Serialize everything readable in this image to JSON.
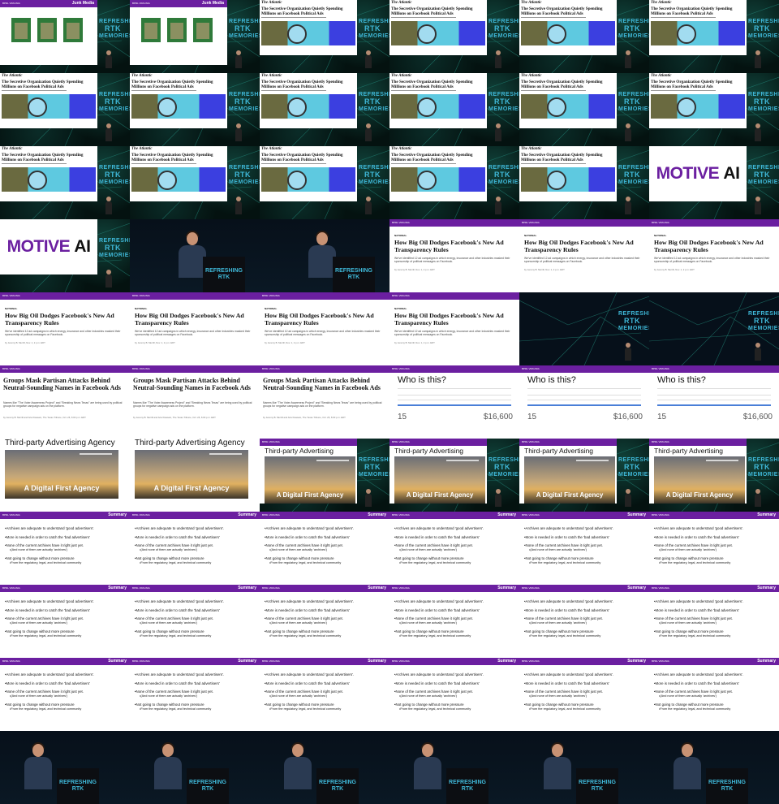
{
  "brand_tag": "BPRL VIRGINIA",
  "rows": [
    [
      "junk",
      "junk",
      "atlantic",
      "atlantic",
      "atlantic",
      "atlantic"
    ],
    [
      "atlantic",
      "atlantic",
      "atlantic",
      "atlantic",
      "atlantic",
      "atlantic"
    ],
    [
      "atlantic",
      "atlantic",
      "atlantic",
      "atlantic",
      "atlantic",
      "motive"
    ],
    [
      "motive",
      "speaker",
      "speaker",
      "pp",
      "pp",
      "pp"
    ],
    [
      "pp",
      "pp",
      "pp",
      "pp",
      "stage",
      "stage"
    ],
    [
      "groups",
      "groups",
      "groups",
      "who",
      "who",
      "who"
    ],
    [
      "tp_full",
      "tp_full",
      "tp_small",
      "tp_small",
      "tp_small",
      "tp_small"
    ],
    [
      "summary",
      "summary",
      "summary",
      "summary",
      "summary",
      "summary"
    ],
    [
      "summary",
      "summary",
      "summary",
      "summary",
      "summary",
      "summary"
    ],
    [
      "summary",
      "summary",
      "summary",
      "summary",
      "summary",
      "summary"
    ],
    [
      "speaker2",
      "speaker2",
      "speaker2",
      "speaker2",
      "speaker2",
      "speaker2"
    ]
  ],
  "junk": {
    "title": "Junk Media"
  },
  "atlantic": {
    "masthead": "The Atlantic",
    "headline": "The Secretive Organization Quietly Spending Millions on Facebook Political Ads"
  },
  "motive": {
    "text_a": "MOTIVE ",
    "text_b": "AI"
  },
  "stage_logo": {
    "line1": "REFRESHING",
    "line2": "RTK",
    "line3": "MEMORIES"
  },
  "pp": {
    "section": "NATIONAL",
    "headline": "How Big Oil Dodges Facebook's New Ad Transparency Rules",
    "dek": "We've identified 12 ad campaigns in which energy, insurance and other industries masked their sponsorship of political messages on Facebook.",
    "byline": "by Jeremy B. Merrill, Nov. 1, 2 p.m. EDT"
  },
  "groups": {
    "headline": "Groups Mask Partisan Attacks Behind Neutral-Sounding Names in Facebook Ads",
    "dek": "Names like \"The Voter Awareness Project\" and \"Breaking News Texas\" are being used by political groups for negative campaign ads on the platform.",
    "byline": "by Jeremy B. Merrill and Ariel Kassam, The Texas Tribune, Oct. 26, 6:00 p.m. EDT"
  },
  "who": {
    "title": "Who is this?",
    "count": "15",
    "amount": "$16,600"
  },
  "third_party": {
    "title": "Third-party Advertising Agency",
    "banner": "A Digital First Agency"
  },
  "summary": {
    "title": "Summary",
    "items": [
      "Archives are adequate to understand 'good advertisers'.",
      "More is needed in order to catch the 'bad advertisers'",
      "None of the current archives have it right just yet.",
      "(And none of them are actually 'archives')",
      "Not going to change without more pressure",
      "From the regulatory, legal, and technical community"
    ]
  }
}
